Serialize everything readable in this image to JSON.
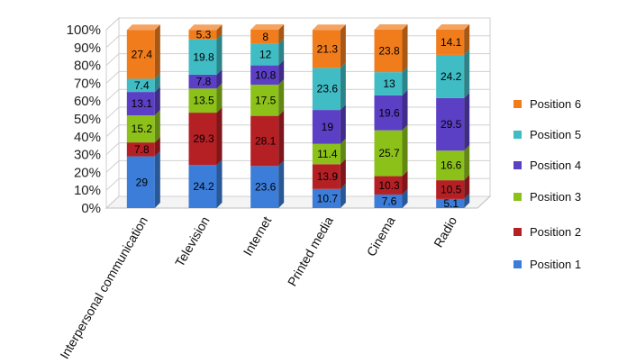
{
  "chart_data": {
    "type": "bar",
    "stacked": true,
    "percent_stacked": true,
    "three_d": true,
    "categories": [
      "Interpersonal communication",
      "Television",
      "Internet",
      "Printed media",
      "Cinema",
      "Radio"
    ],
    "series": [
      {
        "name": "Position 1",
        "color": "#3B7DD8",
        "values": [
          29,
          24.2,
          23.6,
          10.7,
          7.6,
          5.1
        ]
      },
      {
        "name": "Position 2",
        "color": "#B52025",
        "values": [
          7.8,
          29.3,
          28.1,
          13.9,
          10.3,
          10.5
        ]
      },
      {
        "name": "Position 3",
        "color": "#8CC11A",
        "values": [
          15.2,
          13.5,
          17.5,
          11.4,
          25.7,
          16.6
        ]
      },
      {
        "name": "Position 4",
        "color": "#5B3FC4",
        "values": [
          13.1,
          7.8,
          10.8,
          19,
          19.6,
          29.5
        ]
      },
      {
        "name": "Position 5",
        "color": "#3FBCC4",
        "values": [
          7.4,
          19.8,
          12,
          23.6,
          13,
          24.2
        ]
      },
      {
        "name": "Position 6",
        "color": "#F07C1C",
        "values": [
          27.4,
          5.3,
          8,
          21.3,
          23.8,
          14.1
        ]
      }
    ],
    "value_labels": {
      "Position 1": [
        "29",
        "24.2",
        "23.6",
        "10.7",
        "7.6",
        "5.1"
      ],
      "Position 2": [
        "7.8",
        "29.3",
        "28.1",
        "13.9",
        "10.3",
        "10.5"
      ],
      "Position 3": [
        "15.2",
        "13.5",
        "17.5",
        "11.4",
        "25.7",
        "16.6"
      ],
      "Position 4": [
        "13.1",
        "7.8",
        "10.8",
        "19",
        "19.6",
        "29.5"
      ],
      "Position 5": [
        "7.4",
        "19.8",
        "12",
        "23.6",
        "13",
        "24.2"
      ],
      "Position 6": [
        "27.4",
        "5.3",
        "8",
        "21.3",
        "23.8",
        "14.1"
      ]
    },
    "y_ticks": [
      "0%",
      "10%",
      "20%",
      "30%",
      "40%",
      "50%",
      "60%",
      "70%",
      "80%",
      "90%",
      "100%"
    ],
    "ylim": [
      0,
      100
    ],
    "grid": true,
    "legend_position": "right",
    "legend_order": [
      "Position 6",
      "Position 5",
      "Position 4",
      "Position 3",
      "Position 2",
      "Position 1"
    ]
  }
}
